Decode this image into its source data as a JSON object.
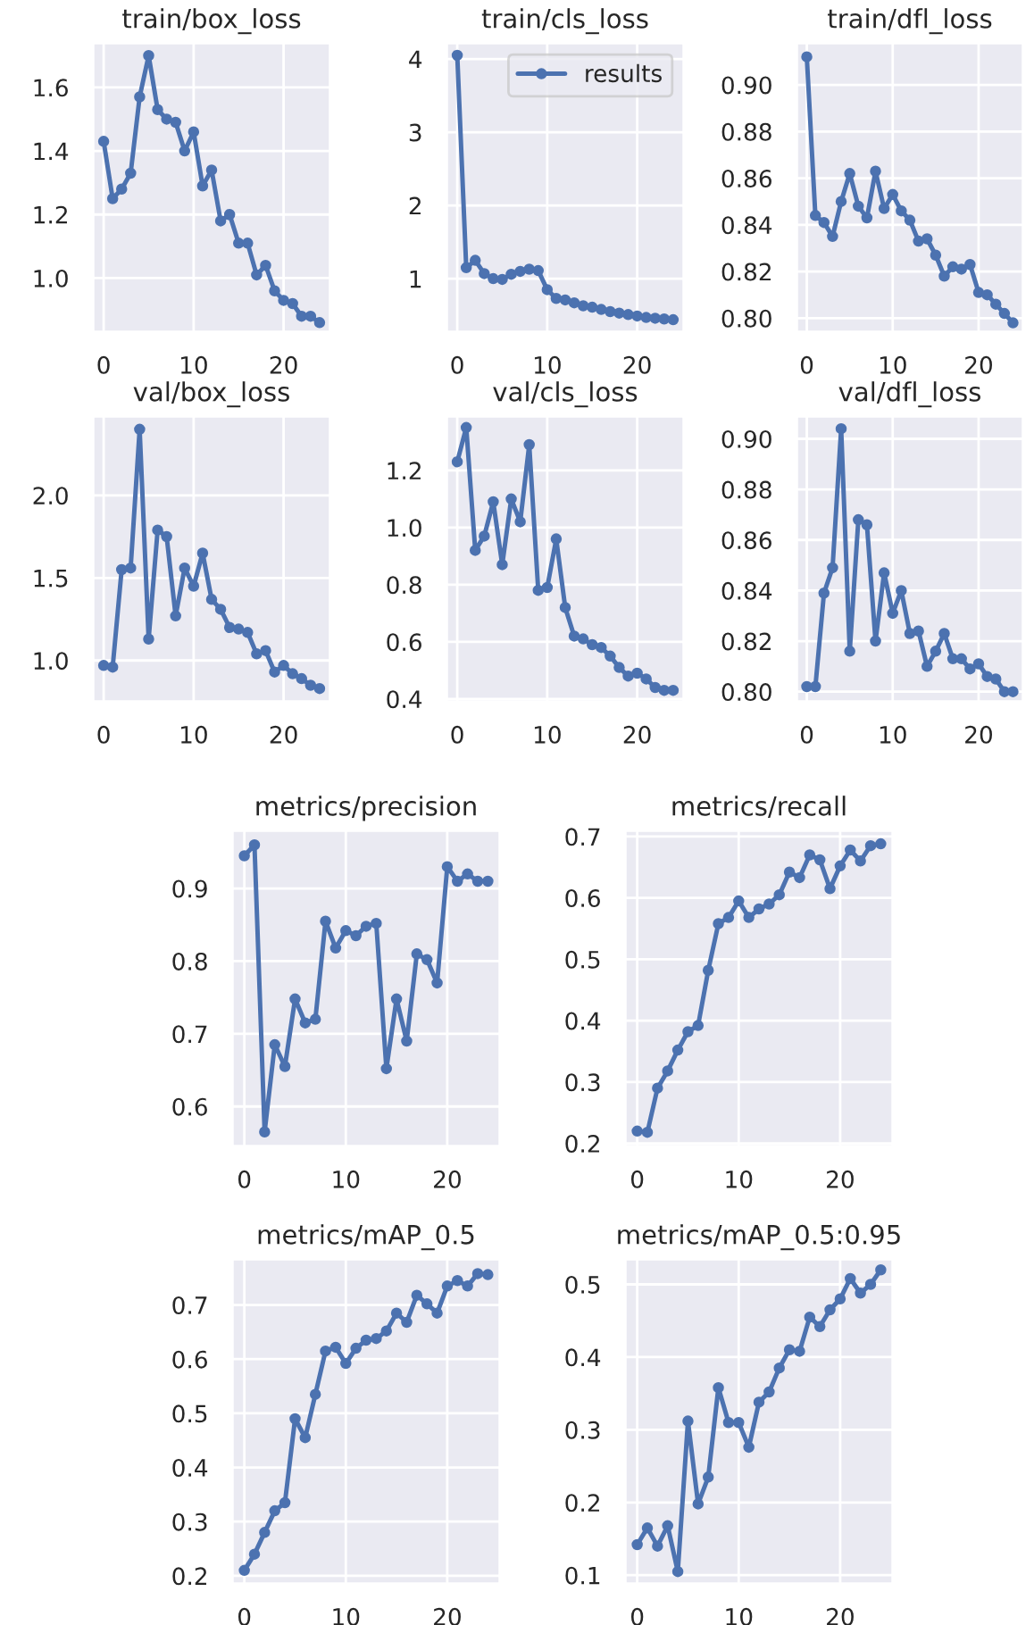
{
  "chart_data": [
    {
      "type": "line",
      "title": "train/box_loss",
      "x": [
        0,
        1,
        2,
        3,
        4,
        5,
        6,
        7,
        8,
        9,
        10,
        11,
        12,
        13,
        14,
        15,
        16,
        17,
        18,
        19,
        20,
        21,
        22,
        23,
        24
      ],
      "xlim": [
        -1.2,
        25.2
      ],
      "xticks": [
        0,
        10,
        20
      ],
      "ylim": [
        0.83,
        1.74
      ],
      "yticks": [
        {
          "value": 1,
          "label": "1.0"
        },
        1.2,
        1.4,
        1.6
      ],
      "grid": true,
      "marker": "circle",
      "line_style": "solid",
      "series": [
        {
          "color": "#4c72b0",
          "values": [
            1.43,
            1.25,
            1.28,
            1.33,
            1.57,
            1.7,
            1.53,
            1.5,
            1.49,
            1.4,
            1.46,
            1.29,
            1.34,
            1.18,
            1.2,
            1.11,
            1.11,
            1.01,
            1.04,
            0.96,
            0.93,
            0.92,
            0.88,
            0.88,
            0.86
          ]
        }
      ]
    },
    {
      "type": "line",
      "title": "train/cls_loss",
      "x": [
        0,
        1,
        2,
        3,
        4,
        5,
        6,
        7,
        8,
        9,
        10,
        11,
        12,
        13,
        14,
        15,
        16,
        17,
        18,
        19,
        20,
        21,
        22,
        23,
        24
      ],
      "xlim": [
        -1.2,
        25.2
      ],
      "xticks": [
        0,
        10,
        20
      ],
      "ylim": [
        0.27,
        4.22
      ],
      "yticks": [
        1,
        2,
        3,
        4
      ],
      "grid": true,
      "marker": "circle",
      "line_style": "solid",
      "legend": "top right",
      "series": [
        {
          "name": "results",
          "color": "#4c72b0",
          "values": [
            4.05,
            1.15,
            1.25,
            1.07,
            1.0,
            0.99,
            1.06,
            1.1,
            1.13,
            1.11,
            0.85,
            0.73,
            0.71,
            0.67,
            0.63,
            0.61,
            0.58,
            0.55,
            0.53,
            0.51,
            0.49,
            0.47,
            0.46,
            0.45,
            0.44
          ]
        }
      ]
    },
    {
      "type": "line",
      "title": "train/dfl_loss",
      "x": [
        0,
        1,
        2,
        3,
        4,
        5,
        6,
        7,
        8,
        9,
        10,
        11,
        12,
        13,
        14,
        15,
        16,
        17,
        18,
        19,
        20,
        21,
        22,
        23,
        24
      ],
      "xlim": [
        -1.2,
        25.2
      ],
      "xticks": [
        0,
        10,
        20
      ],
      "ylim": [
        0.794,
        0.918
      ],
      "yticks": [
        {
          "value": 0.8,
          "label": "0.80"
        },
        {
          "value": 0.82,
          "label": "0.82"
        },
        {
          "value": 0.84,
          "label": "0.84"
        },
        {
          "value": 0.86,
          "label": "0.86"
        },
        {
          "value": 0.88,
          "label": "0.88"
        },
        {
          "value": 0.9,
          "label": "0.90"
        }
      ],
      "grid": true,
      "marker": "circle",
      "line_style": "solid",
      "series": [
        {
          "color": "#4c72b0",
          "values": [
            0.912,
            0.844,
            0.841,
            0.835,
            0.85,
            0.862,
            0.848,
            0.843,
            0.863,
            0.847,
            0.853,
            0.846,
            0.842,
            0.833,
            0.834,
            0.827,
            0.818,
            0.822,
            0.821,
            0.823,
            0.811,
            0.81,
            0.806,
            0.802,
            0.798
          ]
        }
      ]
    },
    {
      "type": "line",
      "title": "val/box_loss",
      "x": [
        0,
        1,
        2,
        3,
        4,
        5,
        6,
        7,
        8,
        9,
        10,
        11,
        12,
        13,
        14,
        15,
        16,
        17,
        18,
        19,
        20,
        21,
        22,
        23,
        24
      ],
      "xlim": [
        -1.2,
        25.2
      ],
      "xticks": [
        0,
        10,
        20
      ],
      "ylim": [
        0.75,
        2.48
      ],
      "yticks": [
        {
          "value": 1,
          "label": "1.0"
        },
        1.5,
        {
          "value": 2,
          "label": "2.0"
        }
      ],
      "grid": true,
      "marker": "circle",
      "line_style": "solid",
      "series": [
        {
          "color": "#4c72b0",
          "values": [
            0.97,
            0.96,
            1.55,
            1.56,
            2.4,
            1.13,
            1.79,
            1.75,
            1.27,
            1.56,
            1.45,
            1.65,
            1.37,
            1.31,
            1.2,
            1.19,
            1.17,
            1.04,
            1.06,
            0.93,
            0.97,
            0.92,
            0.89,
            0.85,
            0.83
          ]
        }
      ]
    },
    {
      "type": "line",
      "title": "val/cls_loss",
      "x": [
        0,
        1,
        2,
        3,
        4,
        5,
        6,
        7,
        8,
        9,
        10,
        11,
        12,
        13,
        14,
        15,
        16,
        17,
        18,
        19,
        20,
        21,
        22,
        23,
        24
      ],
      "xlim": [
        -1.2,
        25.2
      ],
      "xticks": [
        0,
        10,
        20
      ],
      "ylim": [
        0.39,
        1.39
      ],
      "yticks": [
        0.4,
        0.6,
        0.8,
        {
          "value": 1,
          "label": "1.0"
        },
        1.2
      ],
      "grid": true,
      "marker": "circle",
      "line_style": "solid",
      "series": [
        {
          "color": "#4c72b0",
          "values": [
            1.23,
            1.35,
            0.92,
            0.97,
            1.09,
            0.87,
            1.1,
            1.02,
            1.29,
            0.78,
            0.79,
            0.96,
            0.72,
            0.62,
            0.61,
            0.59,
            0.58,
            0.55,
            0.51,
            0.48,
            0.49,
            0.47,
            0.44,
            0.43,
            0.43
          ]
        }
      ]
    },
    {
      "type": "line",
      "title": "val/dfl_loss",
      "x": [
        0,
        1,
        2,
        3,
        4,
        5,
        6,
        7,
        8,
        9,
        10,
        11,
        12,
        13,
        14,
        15,
        16,
        17,
        18,
        19,
        20,
        21,
        22,
        23,
        24
      ],
      "xlim": [
        -1.2,
        25.2
      ],
      "xticks": [
        0,
        10,
        20
      ],
      "ylim": [
        0.796,
        0.909
      ],
      "yticks": [
        {
          "value": 0.8,
          "label": "0.80"
        },
        {
          "value": 0.82,
          "label": "0.82"
        },
        {
          "value": 0.84,
          "label": "0.84"
        },
        {
          "value": 0.86,
          "label": "0.86"
        },
        {
          "value": 0.88,
          "label": "0.88"
        },
        {
          "value": 0.9,
          "label": "0.90"
        }
      ],
      "grid": true,
      "marker": "circle",
      "line_style": "solid",
      "series": [
        {
          "color": "#4c72b0",
          "values": [
            0.802,
            0.802,
            0.839,
            0.849,
            0.904,
            0.816,
            0.868,
            0.866,
            0.82,
            0.847,
            0.831,
            0.84,
            0.823,
            0.824,
            0.81,
            0.816,
            0.823,
            0.813,
            0.813,
            0.809,
            0.811,
            0.806,
            0.805,
            0.8,
            0.8
          ]
        }
      ]
    },
    {
      "type": "line",
      "title": "metrics/precision",
      "x": [
        0,
        1,
        2,
        3,
        4,
        5,
        6,
        7,
        8,
        9,
        10,
        11,
        12,
        13,
        14,
        15,
        16,
        17,
        18,
        19,
        20,
        21,
        22,
        23,
        24
      ],
      "xlim": [
        -1.2,
        25.2
      ],
      "xticks": [
        0,
        10,
        20
      ],
      "ylim": [
        0.545,
        0.98
      ],
      "yticks": [
        0.6,
        0.7,
        0.8,
        0.9
      ],
      "grid": true,
      "marker": "circle",
      "line_style": "solid",
      "series": [
        {
          "color": "#4c72b0",
          "values": [
            0.945,
            0.96,
            0.565,
            0.685,
            0.655,
            0.748,
            0.715,
            0.72,
            0.855,
            0.818,
            0.842,
            0.835,
            0.848,
            0.852,
            0.652,
            0.748,
            0.69,
            0.81,
            0.802,
            0.77,
            0.93,
            0.91,
            0.92,
            0.91,
            0.91
          ]
        }
      ]
    },
    {
      "type": "line",
      "title": "metrics/recall",
      "x": [
        0,
        1,
        2,
        3,
        4,
        5,
        6,
        7,
        8,
        9,
        10,
        11,
        12,
        13,
        14,
        15,
        16,
        17,
        18,
        19,
        20,
        21,
        22,
        23,
        24
      ],
      "xlim": [
        -1.2,
        25.2
      ],
      "xticks": [
        0,
        10,
        20
      ],
      "ylim": [
        0.195,
        0.71
      ],
      "yticks": [
        0.2,
        0.3,
        0.4,
        0.5,
        0.6,
        0.7
      ],
      "grid": true,
      "marker": "circle",
      "line_style": "solid",
      "series": [
        {
          "color": "#4c72b0",
          "values": [
            0.22,
            0.218,
            0.29,
            0.318,
            0.352,
            0.382,
            0.392,
            0.482,
            0.558,
            0.568,
            0.595,
            0.568,
            0.582,
            0.59,
            0.605,
            0.642,
            0.633,
            0.67,
            0.662,
            0.615,
            0.652,
            0.678,
            0.66,
            0.685,
            0.688
          ]
        }
      ]
    },
    {
      "type": "line",
      "title": "metrics/mAP_0.5",
      "x": [
        0,
        1,
        2,
        3,
        4,
        5,
        6,
        7,
        8,
        9,
        10,
        11,
        12,
        13,
        14,
        15,
        16,
        17,
        18,
        19,
        20,
        21,
        22,
        23,
        24
      ],
      "xlim": [
        -1.2,
        25.2
      ],
      "xticks": [
        0,
        10,
        20
      ],
      "ylim": [
        0.185,
        0.785
      ],
      "yticks": [
        0.2,
        0.3,
        0.4,
        0.5,
        0.6,
        0.7
      ],
      "grid": true,
      "marker": "circle",
      "line_style": "solid",
      "series": [
        {
          "color": "#4c72b0",
          "values": [
            0.21,
            0.24,
            0.28,
            0.32,
            0.335,
            0.49,
            0.455,
            0.535,
            0.615,
            0.622,
            0.592,
            0.62,
            0.635,
            0.638,
            0.652,
            0.685,
            0.668,
            0.718,
            0.702,
            0.685,
            0.735,
            0.745,
            0.735,
            0.758,
            0.756
          ]
        }
      ]
    },
    {
      "type": "line",
      "title": "metrics/mAP_0.5:0.95",
      "x": [
        0,
        1,
        2,
        3,
        4,
        5,
        6,
        7,
        8,
        9,
        10,
        11,
        12,
        13,
        14,
        15,
        16,
        17,
        18,
        19,
        20,
        21,
        22,
        23,
        24
      ],
      "xlim": [
        -1.2,
        25.2
      ],
      "xticks": [
        0,
        10,
        20
      ],
      "ylim": [
        0.088,
        0.535
      ],
      "yticks": [
        0.1,
        0.2,
        0.3,
        0.4,
        0.5
      ],
      "grid": true,
      "marker": "circle",
      "line_style": "solid",
      "series": [
        {
          "color": "#4c72b0",
          "values": [
            0.142,
            0.165,
            0.14,
            0.168,
            0.105,
            0.312,
            0.198,
            0.235,
            0.358,
            0.31,
            0.31,
            0.276,
            0.338,
            0.352,
            0.385,
            0.41,
            0.408,
            0.455,
            0.442,
            0.465,
            0.48,
            0.508,
            0.488,
            0.5,
            0.52
          ]
        }
      ]
    }
  ]
}
